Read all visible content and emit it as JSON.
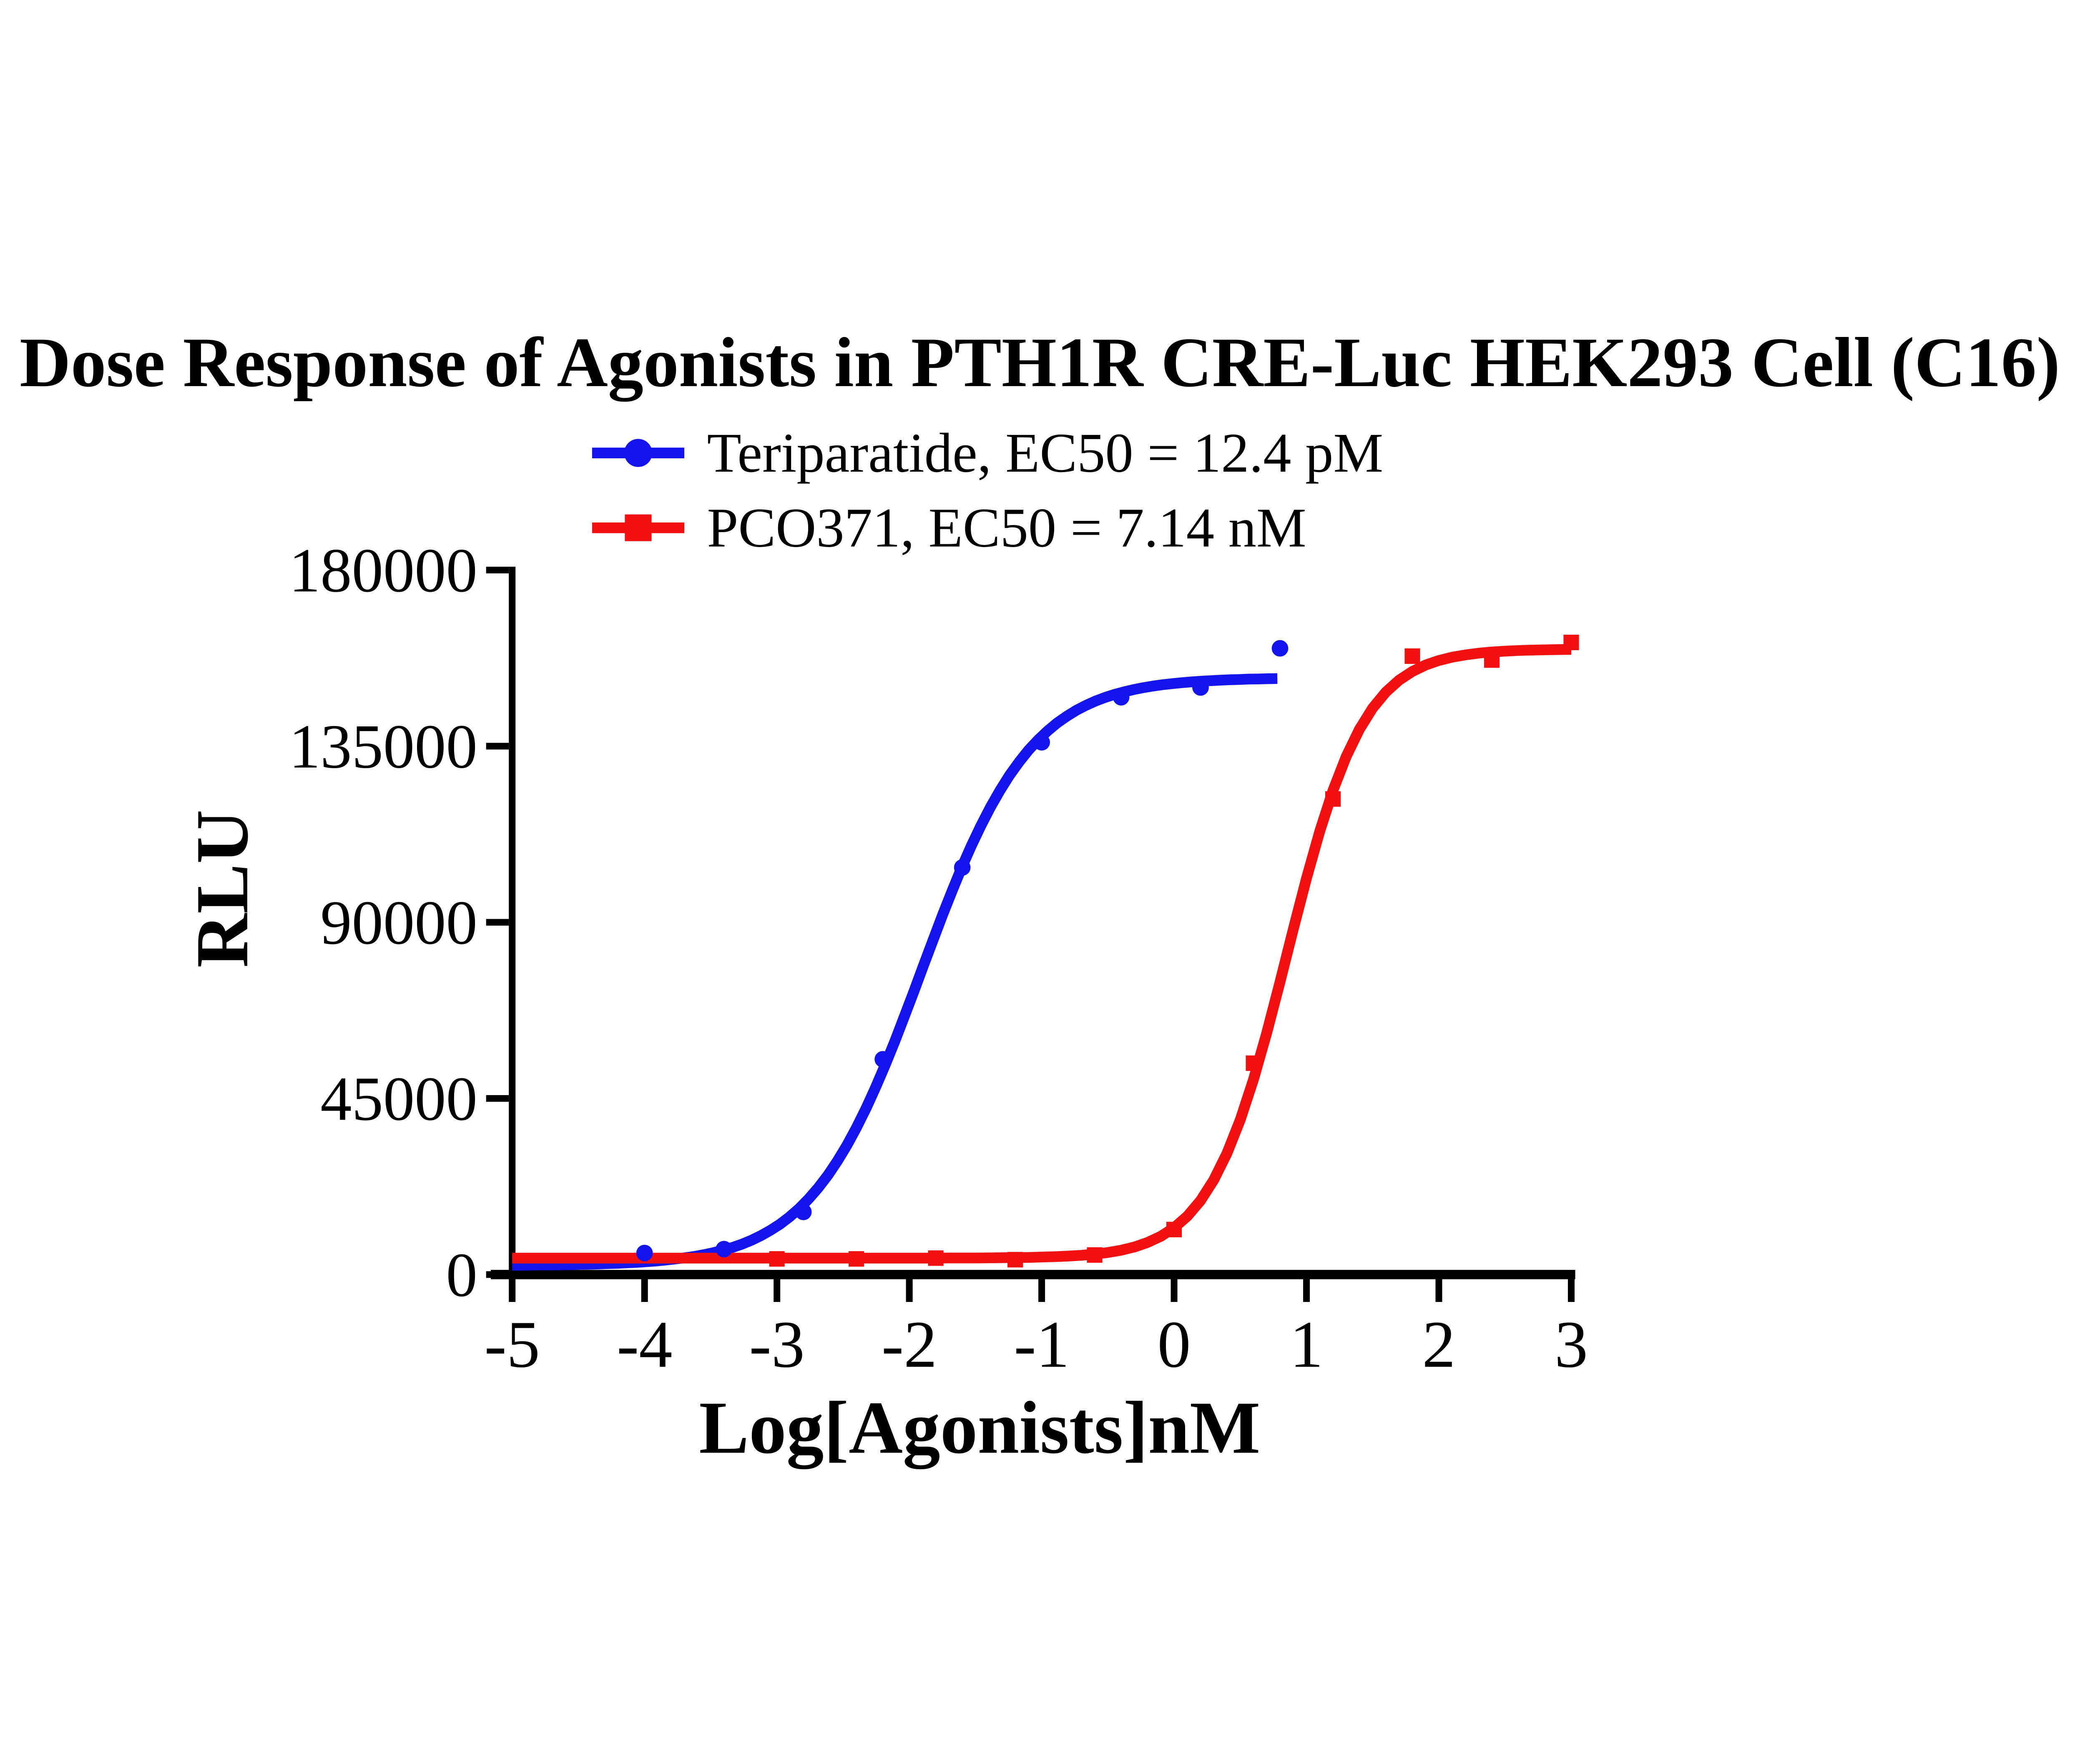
{
  "title": "Dose Response of Agonists in PTH1R CRE-Luc HEK293 Cell (C16)",
  "axes": {
    "x_label": "Log[Agonists]nM",
    "y_label": "RLU"
  },
  "chart_data": {
    "type": "line",
    "title": "Dose Response of Agonists in PTH1R CRE-Luc HEK293 Cell (C16)",
    "xlabel": "Log[Agonists]nM",
    "ylabel": "RLU",
    "xlim": [
      -5,
      3
    ],
    "ylim": [
      0,
      180000
    ],
    "x_ticks": [
      -5,
      -4,
      -3,
      -2,
      -1,
      0,
      1,
      2,
      3
    ],
    "y_ticks": [
      0,
      45000,
      90000,
      135000,
      180000
    ],
    "grid": false,
    "legend_position": "top",
    "axis_color": "#000000",
    "series": [
      {
        "name": "Teriparatide",
        "label": "Teriparatide, EC50 = 12.4 pM",
        "ec50": "12.4 pM",
        "color": "#1414ee",
        "marker": "circle",
        "x": [
          -4,
          -3.4,
          -2.8,
          -2.2,
          -1.6,
          -1,
          -0.4,
          0.2,
          0.8
        ],
        "y": [
          5500,
          6500,
          16000,
          55000,
          104000,
          136000,
          147500,
          150000,
          160000
        ],
        "fit": {
          "bottom": 2300,
          "top": 152500,
          "logEC50": -1.91,
          "hill": 1.05,
          "x_range": [
            -5,
            0.78
          ]
        }
      },
      {
        "name": "PCO371",
        "label": "PCO371, EC50 = 7.14 nM",
        "ec50": "7.14 nM",
        "color": "#f21111",
        "marker": "square",
        "x": [
          -3,
          -2.4,
          -1.8,
          -1.2,
          -0.6,
          0,
          0.6,
          1.2,
          1.8,
          2.4,
          3
        ],
        "y": [
          4000,
          4000,
          4200,
          3800,
          5000,
          11500,
          54000,
          121500,
          158000,
          157000,
          161500
        ],
        "fit": {
          "bottom": 4200,
          "top": 159800,
          "logEC50": 0.854,
          "hill": 1.5,
          "x_range": [
            -5,
            3
          ]
        }
      }
    ]
  }
}
